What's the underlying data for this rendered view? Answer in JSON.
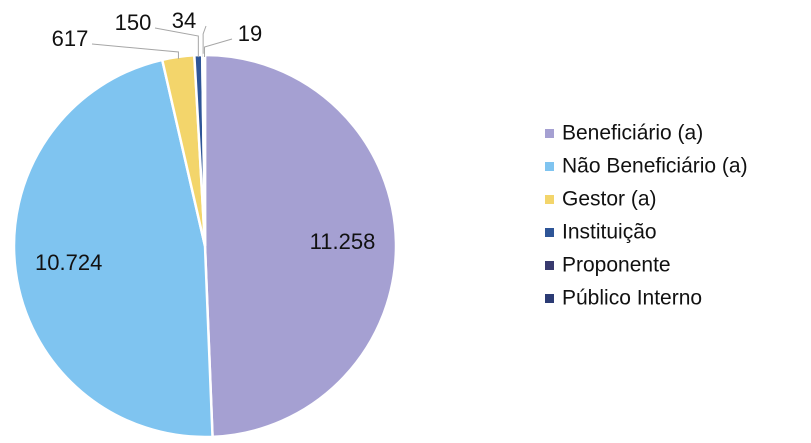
{
  "chart_data": {
    "type": "pie",
    "categories": [
      "Beneficiário (a)",
      "Não Beneficiário (a)",
      "Gestor (a)",
      "Instituição",
      "Proponente",
      "Público Interno"
    ],
    "values": [
      11258,
      10724,
      617,
      150,
      34,
      19
    ],
    "value_labels": [
      "11.258",
      "10.724",
      "617",
      "150",
      "34",
      "19"
    ],
    "colors": [
      "#a5a0d2",
      "#7fc4f0",
      "#f3d56b",
      "#2e5597",
      "#383a6e",
      "#2b3b74"
    ],
    "legend": "right"
  }
}
